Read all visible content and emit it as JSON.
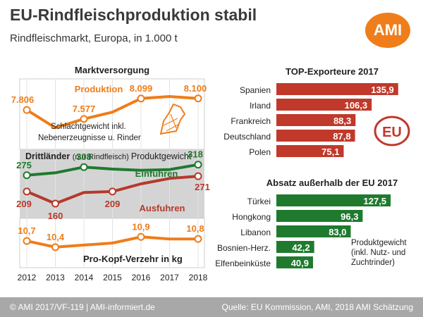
{
  "header": {
    "title": "EU-Rindfleischproduktion stabil",
    "subtitle": "Rindfleischmarkt, Europa, in 1.000 t",
    "logo_text": "AMI"
  },
  "footer": {
    "left": "© AMI 2017/VF-119 | AMI-informiert.de",
    "right": "Quelle: EU Kommission, AMI, 2018 AMI Schätzung"
  },
  "colors": {
    "orange": "#ef7d1a",
    "green": "#1f7a2e",
    "red": "#b5392b",
    "grey_box": "#d4d4d4",
    "bar_red": "#c0392b",
    "bar_green": "#1f7a2e"
  },
  "chart_data": [
    {
      "type": "line",
      "title": "Marktversorgung",
      "x": [
        "2012",
        "2013",
        "2014",
        "2015",
        "2016",
        "2017",
        "2018"
      ],
      "series": [
        {
          "name": "Produktion",
          "values": [
            7806,
            7350,
            7577,
            7750,
            8099,
            8150,
            8100
          ],
          "labels": [
            "7.806",
            "",
            "7.577",
            "",
            "8.099",
            "",
            "8.100"
          ]
        }
      ],
      "annotation": [
        "Schlachtgewicht inkl.",
        "Nebenerzeugnisse u. Rinder"
      ],
      "ylim": [
        6800,
        8600
      ]
    },
    {
      "type": "line",
      "title": "Drittländer",
      "title_note": "(nur Rindfleisch)",
      "title_suffix": "Produktgewicht",
      "x": [
        "2012",
        "2013",
        "2014",
        "2015",
        "2016",
        "2017",
        "2018"
      ],
      "series": [
        {
          "name": "Einfuhren",
          "values": [
            275,
            285,
            308,
            300,
            295,
            298,
            318
          ],
          "labels": [
            "275",
            "",
            "308",
            "",
            "",
            "",
            "318"
          ]
        },
        {
          "name": "Ausfuhren",
          "values": [
            209,
            160,
            205,
            209,
            240,
            262,
            271
          ],
          "labels": [
            "209",
            "160",
            "",
            "209",
            "",
            "",
            "271"
          ]
        }
      ],
      "ylim": [
        100,
        380
      ]
    },
    {
      "type": "line",
      "title": "Pro-Kopf-Verzehr in kg",
      "x": [
        "2012",
        "2013",
        "2014",
        "2015",
        "2016",
        "2017",
        "2018"
      ],
      "series": [
        {
          "name": "Pro-Kopf-Verzehr",
          "values": [
            10.7,
            10.4,
            10.5,
            10.6,
            10.9,
            10.8,
            10.8
          ],
          "labels": [
            "10,7",
            "10,4",
            "",
            "",
            "10,9",
            "",
            "10,8"
          ]
        }
      ],
      "ylim": [
        9.4,
        11.8
      ]
    },
    {
      "type": "bar",
      "orientation": "horizontal",
      "title": "TOP-Exporteure  2017",
      "categories": [
        "Spanien",
        "Irland",
        "Frankreich",
        "Deutschland",
        "Polen"
      ],
      "values": [
        135.9,
        106.3,
        88.3,
        87.8,
        75.1
      ],
      "labels": [
        "135,9",
        "106,3",
        "88,3",
        "87,8",
        "75,1"
      ],
      "badge": "EU",
      "xlim": [
        0,
        140
      ]
    },
    {
      "type": "bar",
      "orientation": "horizontal",
      "title": "Absatz außerhalb der EU 2017",
      "categories": [
        "Türkei",
        "Hongkong",
        "Libanon",
        "Bosnien-Herz.",
        "Elfenbeinküste"
      ],
      "values": [
        127.5,
        96.3,
        83.0,
        42.2,
        40.9
      ],
      "labels": [
        "127,5",
        "96,3",
        "83,0",
        "42,2",
        "40,9"
      ],
      "note": [
        "Produktgewicht",
        "(inkl. Nutz- und",
        "Zuchtrinder)"
      ],
      "xlim": [
        0,
        140
      ]
    }
  ]
}
